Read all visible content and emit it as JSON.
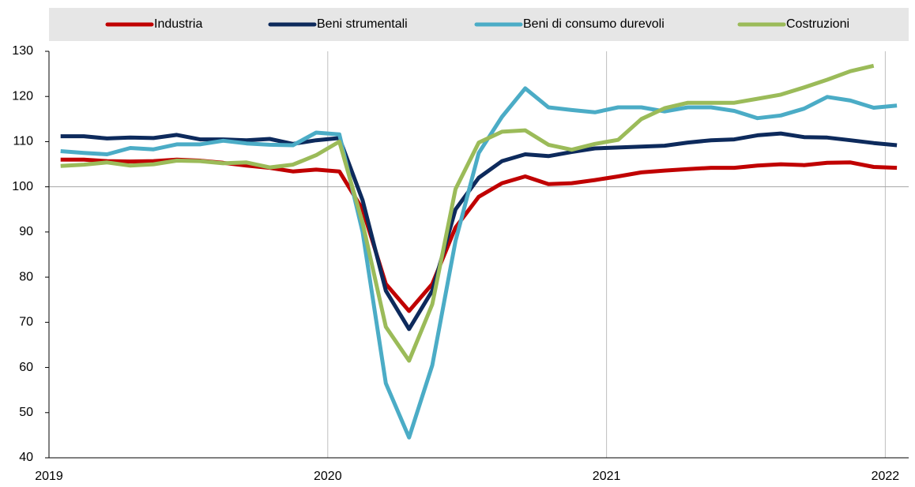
{
  "chart_data": {
    "type": "line",
    "categories": [
      "2019",
      null,
      null,
      null,
      null,
      null,
      null,
      null,
      null,
      null,
      null,
      null,
      "2020",
      null,
      null,
      null,
      null,
      null,
      null,
      null,
      null,
      null,
      null,
      null,
      "2021",
      null,
      null,
      null,
      null,
      null,
      null,
      null,
      null,
      null,
      null,
      null,
      "2022"
    ],
    "series": [
      {
        "name": "Industria",
        "color": "#c00000",
        "values": [
          106,
          106,
          105.7,
          105.6,
          105.7,
          106,
          105.8,
          105.3,
          104.7,
          104.2,
          103.4,
          103.8,
          103.4,
          95,
          78.5,
          72.5,
          78.5,
          91,
          97.8,
          100.8,
          102.3,
          100.6,
          100.8,
          101.5,
          102.3,
          103.2,
          103.6,
          103.9,
          104.2,
          104.2,
          104.7,
          105,
          104.8,
          105.3,
          105.4,
          104.4,
          104.2
        ]
      },
      {
        "name": "Beni strumentali",
        "color": "#0d2a5c",
        "values": [
          111.2,
          111.2,
          110.7,
          110.9,
          110.8,
          111.5,
          110.5,
          110.5,
          110.3,
          110.6,
          109.5,
          110.3,
          110.8,
          97,
          77,
          68.5,
          77,
          95,
          102,
          105.7,
          107.2,
          106.8,
          107.7,
          108.5,
          108.7,
          108.9,
          109.1,
          109.8,
          110.3,
          110.5,
          111.4,
          111.8,
          111,
          110.9,
          110.3,
          109.7,
          109.2
        ]
      },
      {
        "name": "Beni di consumo durevoli",
        "color": "#4bacc6",
        "values": [
          107.9,
          107.5,
          107.2,
          108.6,
          108.3,
          109.4,
          109.4,
          110.2,
          109.6,
          109.3,
          109.2,
          112,
          111.6,
          90,
          56.5,
          44.5,
          60.5,
          88,
          107.5,
          115.5,
          121.8,
          117.6,
          117,
          116.5,
          117.6,
          117.6,
          116.7,
          117.6,
          117.6,
          116.8,
          115.2,
          115.8,
          117.3,
          119.9,
          119.1,
          117.5,
          118
        ]
      },
      {
        "name": "Costruzioni",
        "color": "#9bbb59",
        "values": [
          104.6,
          104.9,
          105.4,
          104.7,
          105,
          105.8,
          105.7,
          105.2,
          105.4,
          104.3,
          104.9,
          107,
          110,
          92,
          69,
          61.5,
          74,
          99.5,
          109.8,
          112.2,
          112.5,
          109.3,
          108.2,
          109.5,
          110.4,
          115,
          117.4,
          118.6,
          118.6,
          118.6,
          119.5,
          120.4,
          122,
          123.7,
          125.6,
          126.8,
          null
        ]
      }
    ],
    "ylim": [
      40,
      130
    ],
    "yticks": [
      40,
      50,
      60,
      70,
      80,
      90,
      100,
      110,
      120,
      130
    ],
    "reference_line": 100
  }
}
